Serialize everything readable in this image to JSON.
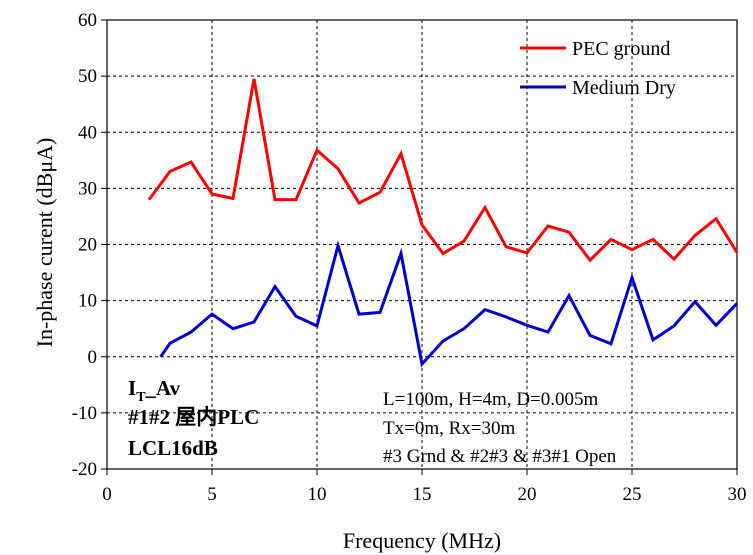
{
  "chart_data": {
    "type": "line",
    "title": "",
    "xlabel": "Frequency (MHz)",
    "ylabel": "In-phase curent (dBμA)",
    "xlim": [
      0,
      30
    ],
    "ylim": [
      -20,
      60
    ],
    "xticks": [
      0,
      5,
      10,
      15,
      20,
      25,
      30
    ],
    "yticks": [
      -20,
      -10,
      0,
      10,
      20,
      30,
      40,
      50,
      60
    ],
    "grid": true,
    "grid_style": "dashed",
    "legend_position": "top-right",
    "series": [
      {
        "name": "PEC ground",
        "color": "#ff0000",
        "x": [
          2,
          3,
          4,
          5,
          6,
          7,
          8,
          9,
          10,
          11,
          12,
          13,
          14,
          15,
          16,
          17,
          18,
          19,
          20,
          21,
          22,
          23,
          24,
          25,
          26,
          27,
          28,
          29,
          30
        ],
        "values": [
          28,
          33,
          34.7,
          29,
          28.2,
          49.5,
          28,
          28,
          36.8,
          33.5,
          27.4,
          29.3,
          36.2,
          23.5,
          18.4,
          20.6,
          26.6,
          19.6,
          18.5,
          23.3,
          22.2,
          17.2,
          20.9,
          19.1,
          20.9,
          17.4,
          21.6,
          24.6,
          18.6
        ]
      },
      {
        "name": "Medium Dry",
        "color": "#0000cc",
        "x": [
          2.55,
          3,
          4,
          5,
          6,
          7,
          8,
          9,
          10,
          11,
          12,
          13,
          14,
          15,
          16,
          17,
          18,
          19,
          20,
          21,
          22,
          23,
          24,
          25,
          26,
          27,
          28,
          29,
          30
        ],
        "values": [
          0,
          2.4,
          4.4,
          7.6,
          5,
          6.2,
          12.5,
          7.2,
          5.5,
          19.8,
          7.6,
          7.9,
          18.4,
          -1.3,
          2.8,
          5,
          8.4,
          7.1,
          5.6,
          4.4,
          10.9,
          3.8,
          2.3,
          14.1,
          3,
          5.5,
          9.8,
          5.6,
          9.5
        ]
      }
    ],
    "annotations_left": {
      "line1_main": "I",
      "line1_sub": "T",
      "line1_rest": "_Av",
      "line2": "#1#2 屋内PLC",
      "line3": "LCL16dB"
    },
    "annotations_right": {
      "line1": "L=100m, H=4m, D=0.005m",
      "line2": "Tx=0m, Rx=30m",
      "line3": "#3 Grnd & #2#3 & #3#1 Open"
    }
  }
}
